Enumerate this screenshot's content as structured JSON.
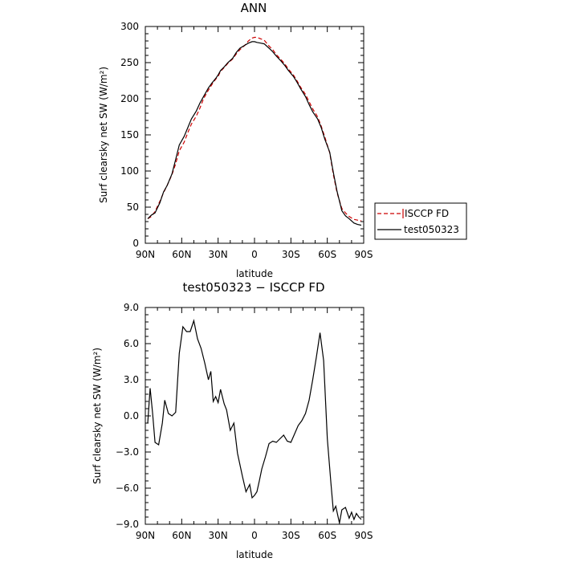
{
  "chart_data": [
    {
      "type": "line",
      "title": "ANN",
      "xlabel": "latitude",
      "ylabel": "Surf clearsky net SW (W/m²)",
      "xlim": [
        90,
        -90
      ],
      "ylim": [
        0,
        300
      ],
      "xticks": [
        90,
        60,
        30,
        0,
        -30,
        -60,
        -90
      ],
      "xtick_labels": [
        "90N",
        "60N",
        "30N",
        "0",
        "30S",
        "60S",
        "90S"
      ],
      "yticks": [
        0,
        50,
        100,
        150,
        200,
        250,
        300
      ],
      "ytick_labels": [
        "0",
        "50",
        "100",
        "150",
        "200",
        "250",
        "300"
      ],
      "legend_position": "right",
      "series": [
        {
          "name": "ISCCP FD",
          "color": "#cc0000",
          "dash": true,
          "x": [
            88,
            85,
            82,
            78,
            75,
            72,
            68,
            65,
            62,
            58,
            55,
            52,
            48,
            45,
            42,
            38,
            35,
            32,
            30,
            28,
            25,
            22,
            18,
            15,
            12,
            8,
            5,
            2,
            0,
            -2,
            -5,
            -8,
            -12,
            -15,
            -18,
            -22,
            -25,
            -28,
            -32,
            -35,
            -38,
            -42,
            -45,
            -48,
            -52,
            -55,
            -58,
            -62,
            -65,
            -68,
            -72,
            -75,
            -78,
            -82,
            -85,
            -88
          ],
          "y": [
            34,
            37,
            44,
            58,
            70,
            80,
            95,
            110,
            128,
            140,
            153,
            165,
            176,
            187,
            200,
            212,
            220,
            227,
            231,
            238,
            243,
            249,
            255,
            262,
            268,
            274,
            280,
            284,
            285,
            285,
            283,
            281,
            273,
            268,
            261,
            254,
            248,
            241,
            233,
            225,
            216,
            206,
            196,
            186,
            175,
            162,
            147,
            125,
            95,
            70,
            48,
            42,
            37,
            33,
            32,
            31
          ]
        },
        {
          "name": "test050323",
          "color": "#000000",
          "dash": false,
          "x": [
            88,
            85,
            82,
            78,
            75,
            72,
            68,
            65,
            62,
            58,
            55,
            52,
            48,
            45,
            42,
            38,
            35,
            32,
            30,
            28,
            25,
            22,
            18,
            15,
            12,
            8,
            5,
            2,
            0,
            -2,
            -5,
            -8,
            -12,
            -15,
            -18,
            -22,
            -25,
            -28,
            -32,
            -35,
            -38,
            -42,
            -45,
            -48,
            -52,
            -55,
            -58,
            -62,
            -65,
            -68,
            -72,
            -75,
            -78,
            -82,
            -85,
            -88
          ],
          "y": [
            34,
            39,
            42,
            56,
            71,
            80,
            96,
            116,
            136,
            148,
            160,
            172,
            183,
            194,
            203,
            215,
            222,
            228,
            233,
            239,
            244,
            250,
            256,
            264,
            270,
            274,
            277,
            279,
            279,
            278,
            277,
            276,
            270,
            265,
            259,
            252,
            246,
            239,
            231,
            223,
            214,
            203,
            192,
            182,
            172,
            160,
            144,
            126,
            98,
            72,
            45,
            38,
            34,
            28,
            26,
            25
          ]
        }
      ]
    },
    {
      "type": "line",
      "title": "test050323 − ISCCP FD",
      "xlabel": "latitude",
      "ylabel": "Surf clearsky net SW (W/m²)",
      "xlim": [
        90,
        -90
      ],
      "ylim": [
        -9,
        9
      ],
      "xticks": [
        90,
        60,
        30,
        0,
        -30,
        -60,
        -90
      ],
      "xtick_labels": [
        "90N",
        "60N",
        "30N",
        "0",
        "30S",
        "60S",
        "90S"
      ],
      "yticks": [
        -9,
        -6,
        -3,
        0,
        3,
        6,
        9
      ],
      "ytick_labels": [
        "−9.0",
        "−6.0",
        "−3.0",
        "0.0",
        "3.0",
        "6.0",
        "9.0"
      ],
      "series": [
        {
          "name": "",
          "color": "#000000",
          "dash": false,
          "x": [
            88,
            86,
            84,
            82,
            79,
            76,
            74,
            71,
            68,
            65,
            62,
            59,
            56,
            53,
            50,
            47,
            44,
            41,
            38,
            36,
            34,
            32,
            30,
            28,
            25,
            23,
            20,
            17,
            14,
            10,
            7,
            4,
            2,
            0,
            -2,
            -4,
            -6,
            -9,
            -12,
            -15,
            -18,
            -21,
            -24,
            -27,
            -30,
            -33,
            -36,
            -39,
            -42,
            -45,
            -48,
            -51,
            -54,
            -57,
            -60,
            -63,
            -65,
            -67,
            -70,
            -72,
            -75,
            -78,
            -80,
            -82,
            -84,
            -86,
            -88
          ],
          "y": [
            -0.6,
            2.3,
            0.2,
            -2.2,
            -2.4,
            -0.6,
            1.3,
            0.2,
            0.0,
            0.3,
            5.2,
            7.4,
            7.0,
            7.0,
            7.9,
            6.4,
            5.6,
            4.4,
            3.0,
            3.7,
            1.2,
            1.6,
            1.1,
            2.2,
            1.0,
            0.5,
            -1.2,
            -0.6,
            -3.1,
            -5.0,
            -6.3,
            -5.7,
            -6.8,
            -6.6,
            -6.3,
            -5.4,
            -4.4,
            -3.4,
            -2.3,
            -2.1,
            -2.2,
            -1.9,
            -1.6,
            -2.1,
            -2.2,
            -1.5,
            -0.8,
            -0.4,
            0.2,
            1.3,
            3.0,
            4.9,
            6.9,
            4.6,
            -1.9,
            -5.6,
            -7.9,
            -7.5,
            -8.9,
            -7.8,
            -7.6,
            -8.5,
            -8.0,
            -8.6,
            -8.1,
            -8.4,
            -8.6
          ]
        }
      ]
    }
  ]
}
